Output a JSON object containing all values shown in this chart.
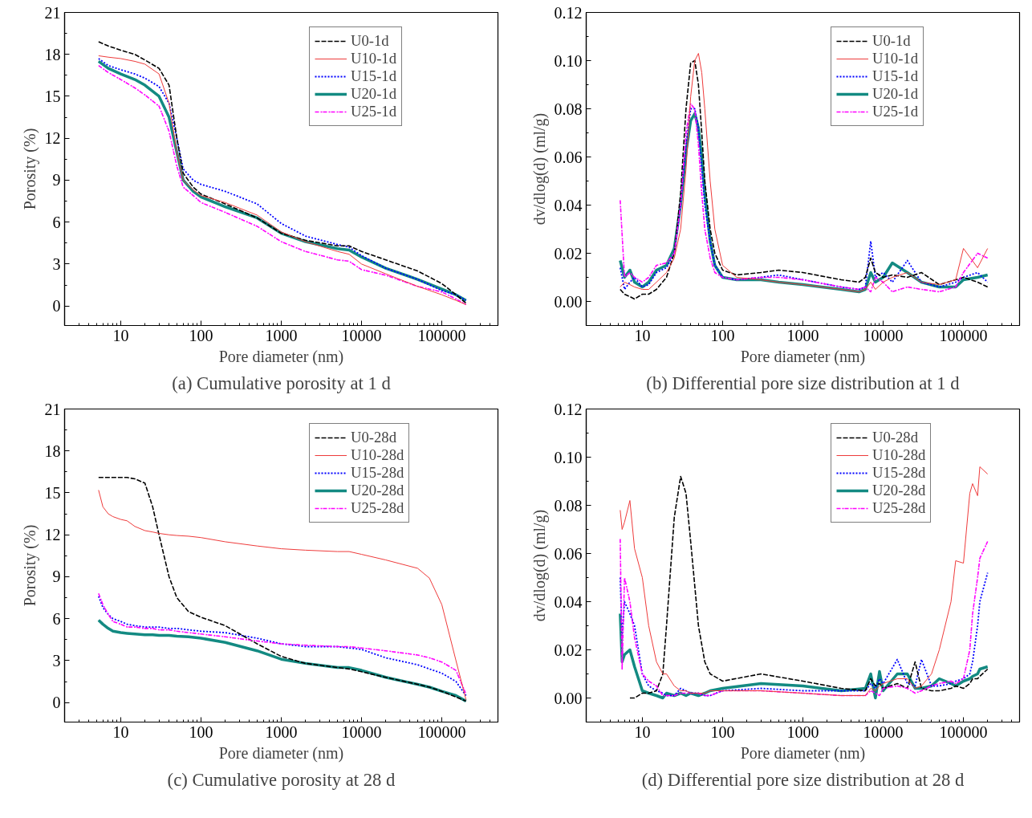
{
  "chart_data": [
    {
      "type": "line",
      "title": "(a) Cumulative porosity at 1 d",
      "xlabel": "Pore diameter (nm)",
      "ylabel": "Porosity (%)",
      "log": "x",
      "legend": "top right",
      "grid": false,
      "x": [
        5.3,
        7,
        10,
        15,
        20,
        30,
        40,
        50,
        60,
        80,
        100,
        200,
        500,
        1000,
        2000,
        5000,
        7000,
        10000,
        20000,
        50000,
        100000,
        150000,
        200000
      ],
      "xlim": [
        2,
        500000
      ],
      "xticks": [
        10,
        100,
        1000,
        10000,
        100000
      ],
      "ylim": [
        -1.4,
        21
      ],
      "yticks": [
        0,
        3,
        6,
        9,
        12,
        15,
        18,
        21
      ],
      "series": [
        {
          "name": "U0-1d",
          "color": "#000000",
          "line_style": "dashed",
          "values": [
            18.9,
            18.6,
            18.3,
            18.0,
            17.6,
            17.0,
            15.8,
            12,
            9.5,
            8.5,
            8.0,
            7.3,
            6.3,
            5.2,
            4.7,
            4.3,
            4.3,
            3.9,
            3.3,
            2.5,
            1.6,
            0.8,
            0.2
          ]
        },
        {
          "name": "U10-1d",
          "color": "#ee3b3b",
          "line_style": "solid",
          "values": [
            17.9,
            17.8,
            17.7,
            17.5,
            17.3,
            16.6,
            14.5,
            11,
            9.0,
            8.3,
            7.9,
            7.4,
            6.5,
            5.3,
            4.6,
            3.9,
            3.7,
            3.0,
            2.3,
            1.4,
            0.8,
            0.4,
            0.1
          ]
        },
        {
          "name": "U15-1d",
          "color": "#0000ff",
          "line_style": "dotted",
          "values": [
            17.7,
            17.2,
            16.9,
            16.6,
            16.3,
            15.7,
            14.5,
            12,
            9.8,
            9.0,
            8.7,
            8.2,
            7.3,
            5.9,
            5.0,
            4.4,
            4.2,
            3.6,
            2.7,
            1.9,
            1.1,
            0.8,
            0.4
          ]
        },
        {
          "name": "U20-1d",
          "color": "#138a82",
          "line_style": "solid",
          "values": [
            17.5,
            17.0,
            16.6,
            16.2,
            15.8,
            15.0,
            13.5,
            11,
            9.0,
            8.2,
            7.8,
            7.1,
            6.3,
            5.2,
            4.6,
            4.1,
            4.0,
            3.5,
            2.7,
            1.9,
            1.2,
            0.8,
            0.4
          ]
        },
        {
          "name": "U25-1d",
          "color": "#ff00ff",
          "line_style": "dashdot",
          "values": [
            17.2,
            16.7,
            16.2,
            15.6,
            15.1,
            14.3,
            12.5,
            10,
            8.5,
            7.9,
            7.4,
            6.7,
            5.7,
            4.6,
            3.9,
            3.3,
            3.2,
            2.6,
            2.2,
            1.4,
            1.0,
            0.5,
            0.1
          ]
        }
      ]
    },
    {
      "type": "line",
      "title": "(b) Differential pore size distribution at 1 d",
      "xlabel": "Pore diameter (nm)",
      "ylabel": "dv/dlog(d) (ml/g)",
      "log": "x",
      "legend": "top right",
      "grid": false,
      "x": [
        5.3,
        6,
        7,
        8,
        10,
        12,
        15,
        20,
        25,
        30,
        35,
        40,
        45,
        50,
        55,
        60,
        70,
        80,
        100,
        150,
        300,
        500,
        1000,
        3000,
        5000,
        6000,
        7000,
        8000,
        10000,
        13000,
        20000,
        30000,
        50000,
        80000,
        100000,
        150000,
        200000
      ],
      "xlim": [
        2,
        500000
      ],
      "xticks": [
        10,
        100,
        1000,
        10000,
        100000
      ],
      "ylim": [
        -0.01,
        0.12
      ],
      "yticks": [
        {
          "value": 0,
          "label": "0.00"
        },
        {
          "value": 0.02,
          "label": "0.02"
        },
        {
          "value": 0.04,
          "label": "0.04"
        },
        {
          "value": 0.06,
          "label": "0.06"
        },
        {
          "value": 0.08,
          "label": "0.08"
        },
        {
          "value": 0.1,
          "label": "0.10"
        },
        {
          "value": 0.12,
          "label": "0.12"
        }
      ],
      "series": [
        {
          "name": "U0-1d",
          "color": "#000000",
          "line_style": "dashed",
          "values": [
            0.005,
            0.003,
            0.002,
            0.001,
            0.003,
            0.003,
            0.005,
            0.01,
            0.02,
            0.045,
            0.08,
            0.099,
            0.1,
            0.09,
            0.07,
            0.05,
            0.03,
            0.02,
            0.013,
            0.011,
            0.012,
            0.013,
            0.012,
            0.009,
            0.008,
            0.01,
            0.018,
            0.012,
            0.01,
            0.011,
            0.01,
            0.012,
            0.007,
            0.009,
            0.01,
            0.008,
            0.006
          ]
        },
        {
          "name": "U10-1d",
          "color": "#ee3b3b",
          "line_style": "solid",
          "values": [
            0.006,
            0.008,
            0.007,
            0.006,
            0.005,
            0.005,
            0.008,
            0.012,
            0.018,
            0.03,
            0.055,
            0.085,
            0.1,
            0.103,
            0.095,
            0.08,
            0.05,
            0.03,
            0.015,
            0.01,
            0.009,
            0.008,
            0.007,
            0.005,
            0.004,
            0.005,
            0.008,
            0.005,
            0.008,
            0.01,
            0.012,
            0.008,
            0.007,
            0.009,
            0.022,
            0.014,
            0.022
          ]
        },
        {
          "name": "U15-1d",
          "color": "#0000ff",
          "line_style": "dotted",
          "values": [
            0.014,
            0.005,
            0.008,
            0.01,
            0.006,
            0.007,
            0.012,
            0.014,
            0.02,
            0.04,
            0.065,
            0.08,
            0.08,
            0.072,
            0.055,
            0.04,
            0.025,
            0.015,
            0.01,
            0.009,
            0.01,
            0.011,
            0.009,
            0.006,
            0.005,
            0.006,
            0.025,
            0.01,
            0.012,
            0.008,
            0.017,
            0.008,
            0.006,
            0.008,
            0.01,
            0.012,
            0.008
          ]
        },
        {
          "name": "U20-1d",
          "color": "#138a82",
          "line_style": "solid",
          "values": [
            0.017,
            0.01,
            0.013,
            0.008,
            0.006,
            0.008,
            0.013,
            0.015,
            0.022,
            0.04,
            0.062,
            0.075,
            0.078,
            0.072,
            0.06,
            0.045,
            0.025,
            0.015,
            0.01,
            0.009,
            0.009,
            0.008,
            0.007,
            0.005,
            0.004,
            0.005,
            0.012,
            0.008,
            0.01,
            0.016,
            0.012,
            0.008,
            0.006,
            0.006,
            0.009,
            0.01,
            0.011
          ]
        },
        {
          "name": "U25-1d",
          "color": "#ff00ff",
          "line_style": "dashdot",
          "values": [
            0.042,
            0.01,
            0.012,
            0.01,
            0.008,
            0.01,
            0.015,
            0.016,
            0.02,
            0.04,
            0.07,
            0.082,
            0.08,
            0.065,
            0.045,
            0.03,
            0.018,
            0.012,
            0.01,
            0.009,
            0.01,
            0.01,
            0.009,
            0.006,
            0.005,
            0.006,
            0.004,
            0.01,
            0.008,
            0.004,
            0.006,
            0.005,
            0.004,
            0.006,
            0.012,
            0.02,
            0.018
          ]
        }
      ]
    },
    {
      "type": "line",
      "title": "(c) Cumulative porosity at 28 d",
      "xlabel": "Pore diameter (nm)",
      "ylabel": "Porosity (%)",
      "log": "x",
      "legend": "top right",
      "grid": false,
      "x": [
        5.3,
        6,
        7,
        8,
        10,
        12,
        15,
        20,
        25,
        30,
        40,
        50,
        70,
        100,
        200,
        500,
        1000,
        2000,
        5000,
        7000,
        10000,
        20000,
        50000,
        70000,
        100000,
        150000,
        200000
      ],
      "xlim": [
        2,
        500000
      ],
      "xticks": [
        10,
        100,
        1000,
        10000,
        100000
      ],
      "ylim": [
        -1.4,
        21
      ],
      "yticks": [
        0,
        3,
        6,
        9,
        12,
        15,
        18,
        21
      ],
      "series": [
        {
          "name": "U0-28d",
          "color": "#000000",
          "line_style": "dashed",
          "values": [
            16.1,
            16.1,
            16.1,
            16.1,
            16.1,
            16.1,
            16.0,
            15.7,
            14.0,
            12,
            9.0,
            7.5,
            6.5,
            6.1,
            5.5,
            4.2,
            3.3,
            2.8,
            2.5,
            2.4,
            2.2,
            1.8,
            1.3,
            1.1,
            0.8,
            0.4,
            0.1
          ]
        },
        {
          "name": "U10-28d",
          "color": "#ee3b3b",
          "line_style": "solid",
          "values": [
            15.2,
            14.0,
            13.5,
            13.3,
            13.1,
            13.0,
            12.6,
            12.3,
            12.2,
            12.1,
            12.0,
            11.95,
            11.9,
            11.8,
            11.5,
            11.2,
            11.0,
            10.9,
            10.8,
            10.8,
            10.6,
            10.2,
            9.6,
            8.9,
            7.0,
            3.0,
            0.2
          ]
        },
        {
          "name": "U15-28d",
          "color": "#0000ff",
          "line_style": "dotted",
          "values": [
            7.6,
            6.8,
            6.3,
            6.0,
            5.8,
            5.6,
            5.5,
            5.4,
            5.4,
            5.4,
            5.3,
            5.3,
            5.2,
            5.1,
            5.0,
            4.6,
            4.2,
            4.0,
            4.0,
            3.9,
            3.8,
            3.2,
            2.7,
            2.4,
            2.1,
            1.5,
            0.5
          ]
        },
        {
          "name": "U20-28d",
          "color": "#138a82",
          "line_style": "solid",
          "values": [
            5.9,
            5.6,
            5.3,
            5.1,
            5.0,
            4.95,
            4.9,
            4.85,
            4.85,
            4.8,
            4.8,
            4.75,
            4.7,
            4.6,
            4.3,
            3.7,
            3.1,
            2.8,
            2.5,
            2.5,
            2.3,
            1.8,
            1.3,
            1.1,
            0.8,
            0.5,
            0.1
          ]
        },
        {
          "name": "U25-28d",
          "color": "#ff00ff",
          "line_style": "dashdot",
          "values": [
            7.8,
            7.0,
            6.3,
            5.8,
            5.6,
            5.4,
            5.4,
            5.3,
            5.3,
            5.2,
            5.2,
            5.1,
            5.0,
            4.9,
            4.7,
            4.4,
            4.2,
            4.1,
            4.0,
            4.0,
            3.9,
            3.7,
            3.4,
            3.2,
            2.9,
            2.3,
            0.6
          ]
        }
      ]
    },
    {
      "type": "line",
      "title": "(d) Differential pore size distribution at 28 d",
      "xlabel": "Pore diameter (nm)",
      "ylabel": "dv/dlog(d) (ml/g)",
      "log": "x",
      "legend": "top right",
      "grid": false,
      "x": [
        5.3,
        5.6,
        6,
        7,
        8,
        10,
        12,
        15,
        18,
        20,
        25,
        30,
        35,
        40,
        50,
        60,
        70,
        100,
        300,
        1000,
        3000,
        6000,
        7000,
        8000,
        9000,
        10000,
        15000,
        20000,
        25000,
        30000,
        40000,
        50000,
        70000,
        80000,
        100000,
        120000,
        130000,
        150000,
        160000,
        200000
      ],
      "xlim": [
        2,
        500000
      ],
      "xticks": [
        10,
        100,
        1000,
        10000,
        100000
      ],
      "ylim": [
        -0.01,
        0.12
      ],
      "yticks": [
        {
          "value": 0,
          "label": "0.00"
        },
        {
          "value": 0.02,
          "label": "0.02"
        },
        {
          "value": 0.04,
          "label": "0.04"
        },
        {
          "value": 0.06,
          "label": "0.06"
        },
        {
          "value": 0.08,
          "label": "0.08"
        },
        {
          "value": 0.1,
          "label": "0.10"
        },
        {
          "value": 0.12,
          "label": "0.12"
        }
      ],
      "series": [
        {
          "name": "U0-28d",
          "color": "#000000",
          "line_style": "dashed",
          "values": [
            null,
            null,
            null,
            0.0,
            0.0,
            0.002,
            0.002,
            0.003,
            0.01,
            0.03,
            0.075,
            0.092,
            0.085,
            0.065,
            0.03,
            0.015,
            0.01,
            0.007,
            0.01,
            0.007,
            0.004,
            0.003,
            0.008,
            0.005,
            0.006,
            0.004,
            0.006,
            0.004,
            0.015,
            0.004,
            0.003,
            0.003,
            0.004,
            0.005,
            0.004,
            0.006,
            0.008,
            0.008,
            0.009,
            0.012
          ]
        },
        {
          "name": "U10-28d",
          "color": "#ee3b3b",
          "line_style": "solid",
          "values": [
            0.078,
            0.07,
            0.073,
            0.082,
            0.062,
            0.05,
            0.03,
            0.015,
            0.01,
            0.01,
            0.005,
            0.003,
            0.003,
            0.002,
            0.002,
            0.002,
            0.003,
            0.003,
            0.003,
            0.002,
            0.001,
            0.001,
            0.004,
            0.003,
            0.005,
            0.006,
            0.008,
            0.008,
            0.004,
            0.005,
            0.01,
            0.02,
            0.04,
            0.057,
            0.056,
            0.085,
            0.089,
            0.084,
            0.096,
            0.093
          ]
        },
        {
          "name": "U15-28d",
          "color": "#0000ff",
          "line_style": "dotted",
          "values": [
            0.05,
            0.025,
            0.04,
            0.035,
            0.03,
            0.01,
            0.005,
            0.003,
            0.002,
            0.001,
            0.001,
            0.004,
            0.003,
            0.002,
            0.002,
            0.001,
            0.001,
            0.003,
            0.004,
            0.003,
            0.003,
            0.003,
            0.006,
            0.004,
            0.008,
            0.006,
            0.016,
            0.006,
            0.005,
            0.016,
            0.005,
            0.005,
            0.006,
            0.007,
            0.008,
            0.01,
            0.015,
            0.03,
            0.04,
            0.052
          ]
        },
        {
          "name": "U20-28d",
          "color": "#138a82",
          "line_style": "solid",
          "values": [
            0.035,
            0.015,
            0.018,
            0.02,
            0.013,
            0.003,
            0.002,
            0.001,
            0.0,
            0.002,
            0.001,
            0.002,
            0.001,
            0.002,
            0.001,
            0.002,
            0.003,
            0.004,
            0.006,
            0.005,
            0.003,
            0.004,
            0.01,
            0.0,
            0.011,
            0.003,
            0.01,
            0.01,
            0.004,
            0.004,
            0.005,
            0.008,
            0.006,
            0.005,
            0.007,
            0.008,
            0.009,
            0.01,
            0.012,
            0.013
          ]
        },
        {
          "name": "U25-28d",
          "color": "#ff00ff",
          "line_style": "dashdot",
          "values": [
            0.066,
            0.012,
            0.05,
            0.04,
            0.025,
            0.01,
            0.007,
            0.005,
            0.001,
            0.001,
            0.001,
            0.002,
            0.002,
            0.002,
            0.002,
            0.001,
            0.001,
            0.003,
            0.003,
            0.002,
            0.001,
            0.001,
            0.003,
            0.002,
            0.001,
            0.004,
            0.005,
            0.004,
            0.002,
            0.003,
            0.005,
            0.006,
            0.007,
            0.006,
            0.008,
            0.02,
            0.035,
            0.05,
            0.058,
            0.065
          ]
        }
      ]
    }
  ]
}
